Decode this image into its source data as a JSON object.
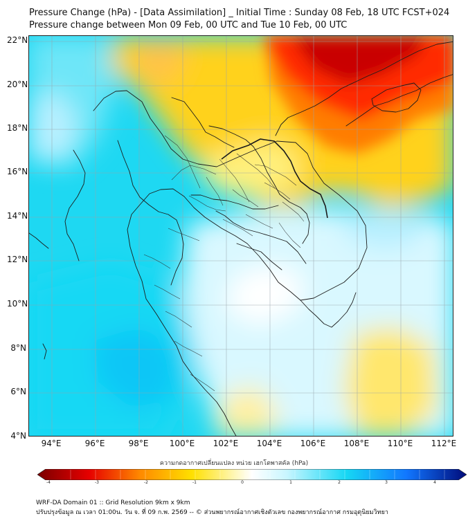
{
  "title": {
    "line1": "Pressure Change (hPa) - [Data Assimilation] _ Initial Time : Sunday 08 Feb, 18 UTC FCST+024",
    "line2": "Pressure change between Mon 09 Feb, 00 UTC and Tue 10 Feb, 00 UTC"
  },
  "latitude_labels": [
    "22°N",
    "20°N",
    "18°N",
    "16°N",
    "14°N",
    "12°N",
    "10°N",
    "8°N",
    "6°N",
    "4°N"
  ],
  "longitude_labels": [
    "94°E",
    "96°E",
    "98°E",
    "100°E",
    "102°E",
    "104°E",
    "106°E",
    "108°E",
    "110°E",
    "112°E"
  ],
  "colorbar": {
    "label": "ความกดอากาศเปลี่ยนแปลง หน่วย เฮกโตพาสคัล (hPa)",
    "ticks": [
      "-4",
      "-3",
      "-2",
      "-1",
      "0",
      "1",
      "2",
      "3",
      "4"
    ],
    "colors": {
      "dark_red": "#7a0000",
      "red": "#e60000",
      "orange": "#ff8a00",
      "yellow": "#ffe000",
      "pale_yellow": "#fff7b8",
      "white": "#ffffff",
      "pale_cyan": "#c9f6ff",
      "cyan": "#16d7f4",
      "blue": "#1177ff",
      "dark_blue": "#000b7a"
    }
  },
  "footer": {
    "line1": "WRF-DA Domain 01 :: Grid Resolution 9km x 9km",
    "line2": "ปรับปรุงข้อมูล ณ เวลา 01:00น. วัน จ. ที่ 09 ก.พ. 2569 -- © ส่วนพยากรณ์อากาศเชิงตัวเลข กองพยากรณ์อากาศ กรมอุตุนิยมวิทยา"
  }
}
